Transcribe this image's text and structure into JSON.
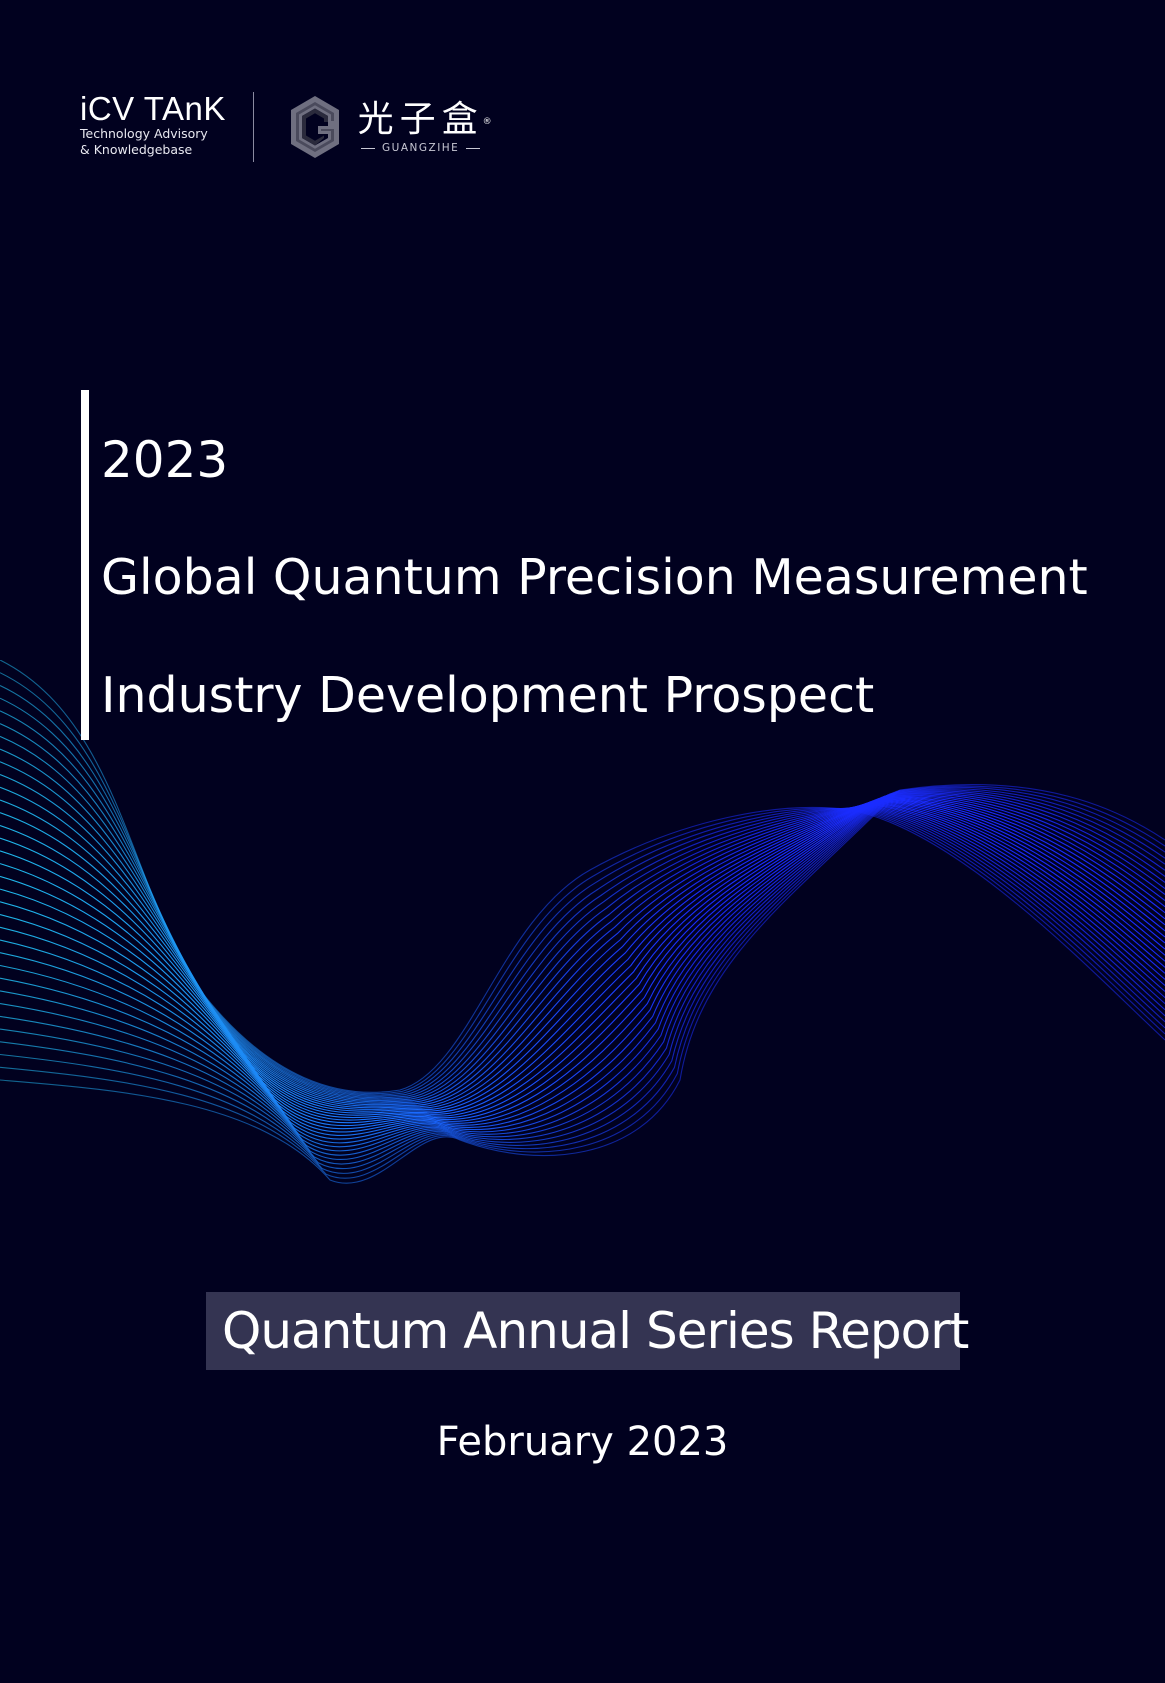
{
  "logos": {
    "icv": {
      "name": "iCV TAnK",
      "subtitle_line1": "Technology Advisory",
      "subtitle_line2": "& Knowledgebase"
    },
    "guangzihe": {
      "chinese_name": "光子盒",
      "registered_mark": "®",
      "english_name": "GUANGZIHE",
      "mark_icon": "hexagon-g-logo-icon"
    }
  },
  "title": {
    "year": "2023",
    "line1": "Global Quantum Precision Measurement",
    "line2": "Industry Development Prospect"
  },
  "series_label": "Quantum Annual Series Report",
  "date": "February 2023",
  "colors": {
    "background": "#01011f",
    "wave_blue": "#1a2cff",
    "wave_cyan": "#1fb8ea",
    "label_box": "#343452"
  }
}
